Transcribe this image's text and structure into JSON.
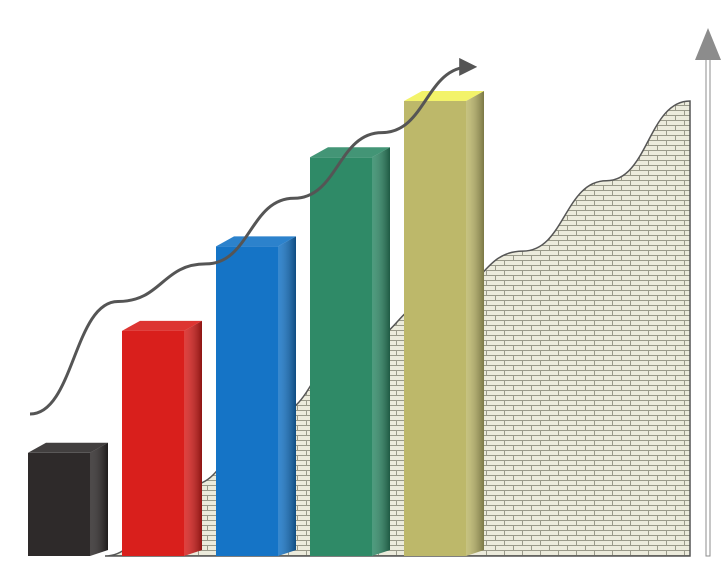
{
  "chart_data": {
    "type": "bar",
    "title": "",
    "xlabel": "",
    "ylabel": "",
    "categories": [
      "",
      "",
      "",
      "",
      ""
    ],
    "values": [
      22,
      48,
      66,
      85,
      97
    ],
    "ylim": [
      0,
      110
    ],
    "grid": false,
    "legend": "none",
    "bar_colors": [
      "#2e2a2a",
      "#d91f1c",
      "#1574c6",
      "#2f8a67",
      "#bdb86a"
    ],
    "bar_top_colors": [
      "#2e2a2a",
      "#d91f1c",
      "#1574c6",
      "#2f8a67",
      "#f2f25a"
    ],
    "background_area": {
      "fill": "#e9e8d8",
      "pattern": "brick",
      "values": [
        0,
        15,
        30,
        45,
        55,
        65,
        80,
        97
      ]
    },
    "trend_line": {
      "color": "#555555",
      "arrow": true,
      "values": [
        26,
        50,
        58,
        72,
        86,
        100
      ]
    },
    "vertical_axis_arrow": {
      "color": "#8c8c8c"
    }
  }
}
